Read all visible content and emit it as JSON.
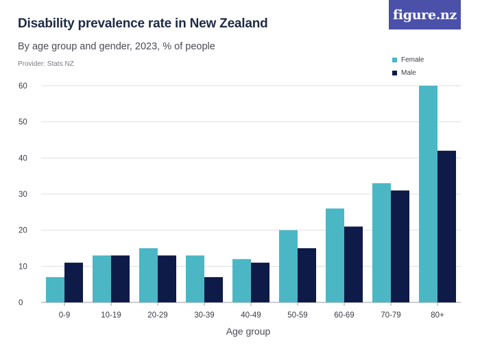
{
  "header": {
    "title": "Disability prevalence rate in New Zealand",
    "subtitle": "By age group and gender, 2023, % of people",
    "provider": "Provider: Stats NZ",
    "logo": "figure.nz"
  },
  "chart_data": {
    "type": "bar",
    "categories": [
      "0-9",
      "10-19",
      "20-29",
      "30-39",
      "40-49",
      "50-59",
      "60-69",
      "70-79",
      "80+"
    ],
    "series": [
      {
        "name": "Female",
        "color": "#4bb7c4",
        "values": [
          7,
          13,
          15,
          13,
          12,
          20,
          26,
          33,
          60
        ]
      },
      {
        "name": "Male",
        "color": "#0e1a47",
        "values": [
          11,
          13,
          13,
          7,
          11,
          15,
          21,
          31,
          42
        ]
      }
    ],
    "title": "Disability prevalence rate in New Zealand",
    "subtitle": "By age group and gender, 2023, % of people",
    "xlabel": "Age group",
    "ylabel": "",
    "ylim": [
      0,
      60
    ],
    "yticks": [
      0,
      10,
      20,
      30,
      40,
      50,
      60
    ],
    "grid": true,
    "legend_position": "top-right"
  }
}
